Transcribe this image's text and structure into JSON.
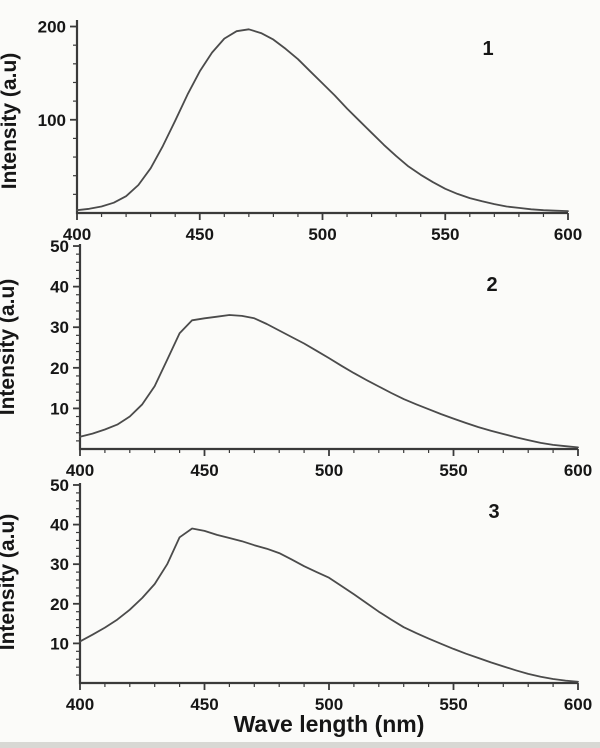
{
  "figure": {
    "xlabel": "Wave length (nm)",
    "ylabel": "Intensity (a.u)",
    "background_color": "#fbfbf9",
    "text_color": "#161616",
    "axis_color": "#3a3a3a",
    "curve_color": "#4b4b4b"
  },
  "chart_data": [
    {
      "type": "line",
      "title": "",
      "curve_label": "1",
      "xlabel": "Wave length (nm)",
      "ylabel": "Intensity (a.u)",
      "xlim": [
        400,
        600
      ],
      "ylim": [
        0,
        207
      ],
      "xticks": [
        400,
        450,
        500,
        550,
        600
      ],
      "yticks": [
        100,
        200
      ],
      "x_minor_step": 10,
      "y_minor_step": 20,
      "grid": false,
      "peak": {
        "x": 468,
        "y": 197
      },
      "x": [
        400,
        405,
        410,
        415,
        420,
        425,
        430,
        435,
        440,
        445,
        450,
        455,
        460,
        465,
        470,
        475,
        480,
        485,
        490,
        495,
        500,
        505,
        510,
        515,
        520,
        525,
        530,
        535,
        540,
        545,
        550,
        555,
        560,
        565,
        570,
        575,
        580,
        585,
        590,
        595,
        600
      ],
      "y": [
        3,
        4.5,
        7,
        11,
        18,
        30,
        48,
        72,
        99,
        127,
        152,
        172,
        187,
        195,
        197,
        193,
        186,
        176,
        165,
        152,
        139,
        126,
        112,
        99,
        86,
        73,
        61,
        50,
        41,
        33,
        26,
        20.5,
        16,
        12.5,
        9.5,
        7,
        5.5,
        4,
        3,
        2.5,
        2
      ]
    },
    {
      "type": "line",
      "title": "",
      "curve_label": "2",
      "xlabel": "Wave length (nm)",
      "ylabel": "Intensity (a.u)",
      "xlim": [
        400,
        600
      ],
      "ylim": [
        0,
        50.5
      ],
      "xticks": [
        400,
        450,
        500,
        550,
        600
      ],
      "yticks": [
        10,
        20,
        30,
        40,
        50
      ],
      "x_minor_step": 10,
      "y_minor_step": 2,
      "grid": false,
      "peak": {
        "x": 462,
        "y": 33
      },
      "x": [
        400,
        405,
        410,
        415,
        420,
        425,
        430,
        435,
        440,
        445,
        450,
        455,
        460,
        465,
        470,
        475,
        480,
        485,
        490,
        495,
        500,
        505,
        510,
        515,
        520,
        525,
        530,
        535,
        540,
        545,
        550,
        555,
        560,
        565,
        570,
        575,
        580,
        585,
        590,
        595,
        600
      ],
      "y": [
        3,
        3.8,
        4.8,
        6,
        8,
        11,
        15.5,
        22,
        28.5,
        31.7,
        32.2,
        32.6,
        33,
        32.8,
        32.2,
        30.8,
        29.2,
        27.6,
        26,
        24.2,
        22.4,
        20.5,
        18.7,
        17,
        15.4,
        13.8,
        12.3,
        11,
        9.8,
        8.6,
        7.5,
        6.4,
        5.4,
        4.5,
        3.7,
        2.9,
        2.2,
        1.5,
        1,
        0.7,
        0.4
      ]
    },
    {
      "type": "line",
      "title": "",
      "curve_label": "3",
      "xlabel": "Wave length (nm)",
      "ylabel": "Intensity (a.u)",
      "xlim": [
        400,
        600
      ],
      "ylim": [
        0,
        50.5
      ],
      "xticks": [
        400,
        450,
        500,
        550,
        600
      ],
      "yticks": [
        10,
        20,
        30,
        40,
        50
      ],
      "x_minor_step": 10,
      "y_minor_step": 2,
      "grid": false,
      "peak": {
        "x": 443,
        "y": 39
      },
      "x": [
        400,
        405,
        410,
        415,
        420,
        425,
        430,
        435,
        440,
        445,
        450,
        455,
        460,
        465,
        470,
        475,
        480,
        485,
        490,
        495,
        500,
        505,
        510,
        515,
        520,
        525,
        530,
        535,
        540,
        545,
        550,
        555,
        560,
        565,
        570,
        575,
        580,
        585,
        590,
        595,
        600
      ],
      "y": [
        10.5,
        12.2,
        14,
        16,
        18.5,
        21.5,
        25,
        30,
        36.8,
        39,
        38.4,
        37.4,
        36.6,
        35.8,
        34.8,
        33.9,
        32.8,
        31.2,
        29.5,
        28,
        26.6,
        24.5,
        22.4,
        20.2,
        18,
        16,
        14.1,
        12.6,
        11.2,
        9.9,
        8.6,
        7.4,
        6.3,
        5.2,
        4.2,
        3.2,
        2.3,
        1.6,
        1,
        0.6,
        0.3
      ]
    }
  ]
}
